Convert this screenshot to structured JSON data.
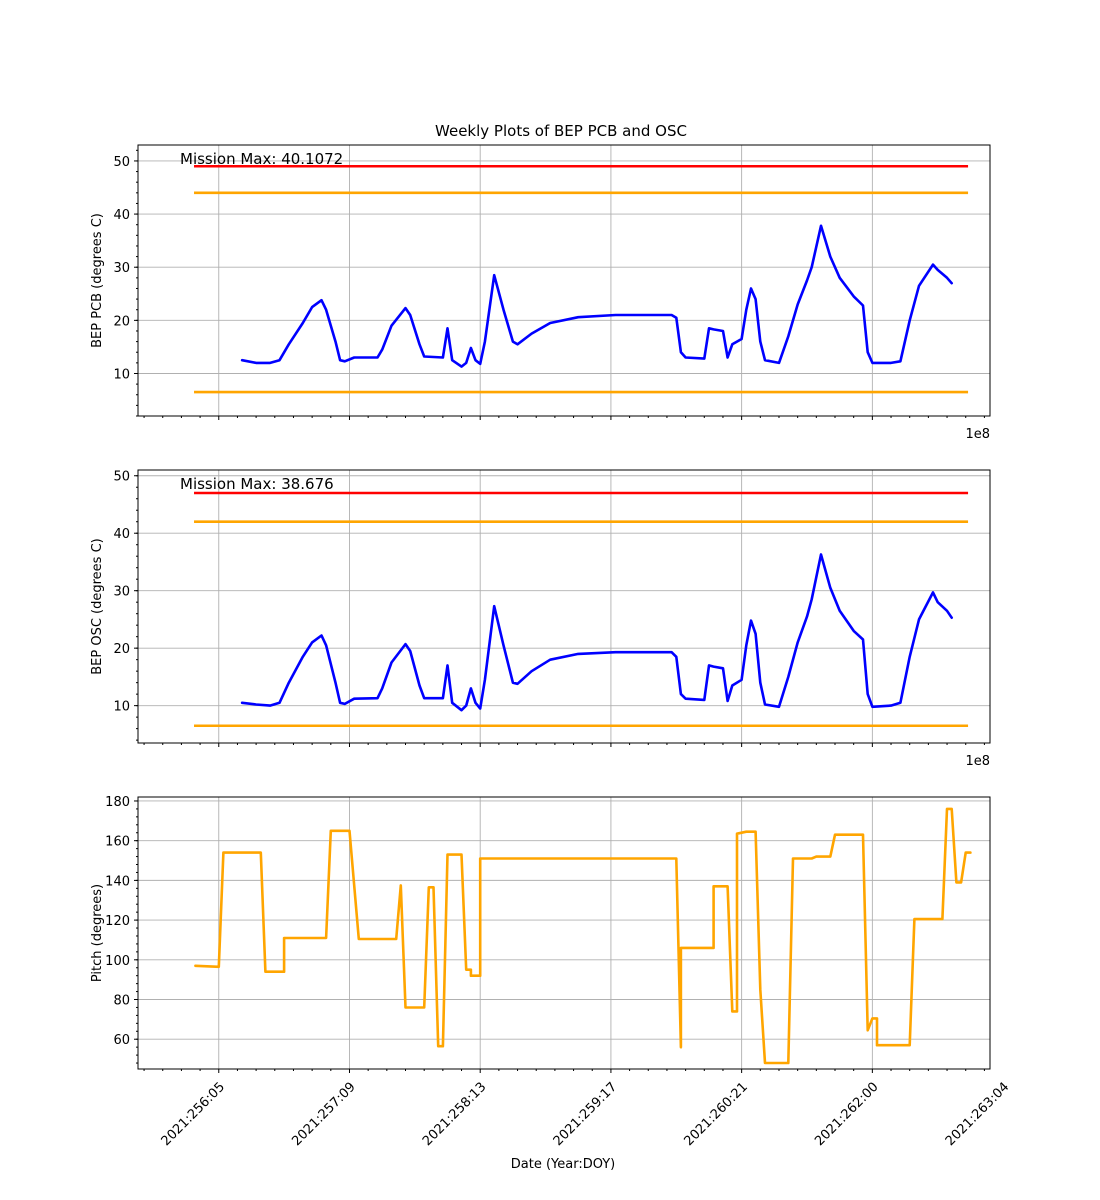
{
  "chart_data": [
    {
      "type": "line",
      "title": "Weekly Plots of BEP PCB and OSC",
      "xlabel": "",
      "ylabel": "BEP PCB (degrees C)",
      "offset_label": "1e8",
      "annotation": "Mission Max: 40.1072",
      "ylim": [
        2,
        53
      ],
      "yticks": [
        10,
        20,
        30,
        40,
        50
      ],
      "grid": true,
      "limit_lines": [
        {
          "y": 49,
          "color": "#ff0000"
        },
        {
          "y": 44,
          "color": "#ffa500"
        },
        {
          "y": 6.5,
          "color": "#ffa500"
        }
      ],
      "series": [
        {
          "color": "#0000ff",
          "points": [
            [
              "2021:256:10",
              12.5
            ],
            [
              "2021:256:13",
              12.0
            ],
            [
              "2021:256:16",
              12.0
            ],
            [
              "2021:256:18",
              12.5
            ],
            [
              "2021:256:20",
              15.5
            ],
            [
              "2021:256:23",
              19.5
            ],
            [
              "2021:257:01",
              22.5
            ],
            [
              "2021:257:03",
              23.8
            ],
            [
              "2021:257:04",
              22.0
            ],
            [
              "2021:257:06",
              16.0
            ],
            [
              "2021:257:07",
              12.5
            ],
            [
              "2021:257:08",
              12.3
            ],
            [
              "2021:257:10",
              13.0
            ],
            [
              "2021:257:15",
              13.0
            ],
            [
              "2021:257:16",
              14.5
            ],
            [
              "2021:257:18",
              19.0
            ],
            [
              "2021:257:21",
              22.3
            ],
            [
              "2021:257:22",
              21.0
            ],
            [
              "2021:258:00",
              15.5
            ],
            [
              "2021:258:01",
              13.2
            ],
            [
              "2021:258:05",
              13.0
            ],
            [
              "2021:258:06",
              18.5
            ],
            [
              "2021:258:07",
              12.5
            ],
            [
              "2021:258:09",
              11.3
            ],
            [
              "2021:258:10",
              12.0
            ],
            [
              "2021:258:11",
              14.8
            ],
            [
              "2021:258:12",
              12.5
            ],
            [
              "2021:258:13",
              11.8
            ],
            [
              "2021:258:14",
              16.0
            ],
            [
              "2021:258:16",
              28.5
            ],
            [
              "2021:258:18",
              22.0
            ],
            [
              "2021:258:20",
              16.0
            ],
            [
              "2021:258:21",
              15.5
            ],
            [
              "2021:259:00",
              17.5
            ],
            [
              "2021:259:04",
              19.5
            ],
            [
              "2021:259:10",
              20.6
            ],
            [
              "2021:259:18",
              21.0
            ],
            [
              "2021:260:00",
              21.0
            ],
            [
              "2021:260:06",
              21.0
            ],
            [
              "2021:260:07",
              20.5
            ],
            [
              "2021:260:08",
              14.0
            ],
            [
              "2021:260:09",
              13.0
            ],
            [
              "2021:260:13",
              12.8
            ],
            [
              "2021:260:14",
              18.5
            ],
            [
              "2021:260:15",
              18.3
            ],
            [
              "2021:260:17",
              18.0
            ],
            [
              "2021:260:18",
              13.0
            ],
            [
              "2021:260:19",
              15.5
            ],
            [
              "2021:260:21",
              16.5
            ],
            [
              "2021:260:22",
              22.0
            ],
            [
              "2021:260:23",
              26.0
            ],
            [
              "2021:261:00",
              24.0
            ],
            [
              "2021:261:01",
              16.0
            ],
            [
              "2021:261:02",
              12.5
            ],
            [
              "2021:261:05",
              12.0
            ],
            [
              "2021:261:07",
              17.0
            ],
            [
              "2021:261:09",
              23.0
            ],
            [
              "2021:261:11",
              27.5
            ],
            [
              "2021:261:12",
              30.0
            ],
            [
              "2021:261:14",
              37.8
            ],
            [
              "2021:261:16",
              32.0
            ],
            [
              "2021:261:18",
              28.0
            ],
            [
              "2021:261:21",
              24.5
            ],
            [
              "2021:261:23",
              22.8
            ],
            [
              "2021:262:00",
              14.0
            ],
            [
              "2021:262:01",
              12.0
            ],
            [
              "2021:262:05",
              12.0
            ],
            [
              "2021:262:07",
              12.3
            ],
            [
              "2021:262:09",
              20.0
            ],
            [
              "2021:262:11",
              26.5
            ],
            [
              "2021:262:14",
              30.5
            ],
            [
              "2021:262:15",
              29.5
            ],
            [
              "2021:262:17",
              28.0
            ],
            [
              "2021:262:18",
              27.0
            ]
          ]
        }
      ]
    },
    {
      "type": "line",
      "title": "",
      "xlabel": "",
      "ylabel": "BEP OSC (degrees C)",
      "offset_label": "1e8",
      "annotation": "Mission Max: 38.676",
      "ylim": [
        3.5,
        51
      ],
      "yticks": [
        10,
        20,
        30,
        40,
        50
      ],
      "grid": true,
      "limit_lines": [
        {
          "y": 47,
          "color": "#ff0000"
        },
        {
          "y": 42,
          "color": "#ffa500"
        },
        {
          "y": 6.5,
          "color": "#ffa500"
        }
      ],
      "series": [
        {
          "color": "#0000ff",
          "points": [
            [
              "2021:256:10",
              10.5
            ],
            [
              "2021:256:13",
              10.2
            ],
            [
              "2021:256:16",
              10.0
            ],
            [
              "2021:256:18",
              10.5
            ],
            [
              "2021:256:20",
              14.0
            ],
            [
              "2021:256:23",
              18.5
            ],
            [
              "2021:257:01",
              21.0
            ],
            [
              "2021:257:03",
              22.2
            ],
            [
              "2021:257:04",
              20.5
            ],
            [
              "2021:257:06",
              14.0
            ],
            [
              "2021:257:07",
              10.5
            ],
            [
              "2021:257:08",
              10.3
            ],
            [
              "2021:257:10",
              11.2
            ],
            [
              "2021:257:15",
              11.3
            ],
            [
              "2021:257:16",
              13.0
            ],
            [
              "2021:257:18",
              17.5
            ],
            [
              "2021:257:21",
              20.7
            ],
            [
              "2021:257:22",
              19.5
            ],
            [
              "2021:258:00",
              13.5
            ],
            [
              "2021:258:01",
              11.3
            ],
            [
              "2021:258:05",
              11.3
            ],
            [
              "2021:258:06",
              17.0
            ],
            [
              "2021:258:07",
              10.5
            ],
            [
              "2021:258:09",
              9.2
            ],
            [
              "2021:258:10",
              10.0
            ],
            [
              "2021:258:11",
              13.0
            ],
            [
              "2021:258:12",
              10.5
            ],
            [
              "2021:258:13",
              9.5
            ],
            [
              "2021:258:14",
              14.5
            ],
            [
              "2021:258:16",
              27.3
            ],
            [
              "2021:258:18",
              20.5
            ],
            [
              "2021:258:20",
              14.0
            ],
            [
              "2021:258:21",
              13.8
            ],
            [
              "2021:259:00",
              16.0
            ],
            [
              "2021:259:04",
              18.0
            ],
            [
              "2021:259:10",
              19.0
            ],
            [
              "2021:259:18",
              19.3
            ],
            [
              "2021:260:00",
              19.3
            ],
            [
              "2021:260:06",
              19.3
            ],
            [
              "2021:260:07",
              18.5
            ],
            [
              "2021:260:08",
              12.0
            ],
            [
              "2021:260:09",
              11.2
            ],
            [
              "2021:260:13",
              11.0
            ],
            [
              "2021:260:14",
              17.0
            ],
            [
              "2021:260:15",
              16.8
            ],
            [
              "2021:260:17",
              16.5
            ],
            [
              "2021:260:18",
              10.8
            ],
            [
              "2021:260:19",
              13.5
            ],
            [
              "2021:260:21",
              14.5
            ],
            [
              "2021:260:22",
              20.5
            ],
            [
              "2021:260:23",
              24.8
            ],
            [
              "2021:261:00",
              22.5
            ],
            [
              "2021:261:01",
              14.0
            ],
            [
              "2021:261:02",
              10.2
            ],
            [
              "2021:261:05",
              9.8
            ],
            [
              "2021:261:07",
              15.0
            ],
            [
              "2021:261:09",
              21.0
            ],
            [
              "2021:261:11",
              25.5
            ],
            [
              "2021:261:12",
              28.5
            ],
            [
              "2021:261:14",
              36.3
            ],
            [
              "2021:261:16",
              30.5
            ],
            [
              "2021:261:18",
              26.5
            ],
            [
              "2021:261:21",
              23.0
            ],
            [
              "2021:261:23",
              21.5
            ],
            [
              "2021:262:00",
              12.0
            ],
            [
              "2021:262:01",
              9.8
            ],
            [
              "2021:262:05",
              10.0
            ],
            [
              "2021:262:07",
              10.5
            ],
            [
              "2021:262:09",
              18.5
            ],
            [
              "2021:262:11",
              25.0
            ],
            [
              "2021:262:14",
              29.7
            ],
            [
              "2021:262:15",
              28.0
            ],
            [
              "2021:262:17",
              26.5
            ],
            [
              "2021:262:18",
              25.3
            ]
          ]
        }
      ]
    },
    {
      "type": "line",
      "title": "",
      "xlabel": "Date (Year:DOY)",
      "ylabel": "Pitch (degrees)",
      "ylim": [
        45,
        182
      ],
      "yticks": [
        60,
        80,
        100,
        120,
        140,
        160,
        180
      ],
      "xticks": [
        "2021:256:05",
        "2021:257:09",
        "2021:258:13",
        "2021:259:17",
        "2021:260:21",
        "2021:262:00",
        "2021:263:04"
      ],
      "grid": true,
      "series": [
        {
          "color": "#ffa500",
          "points": [
            [
              "2021:256:00",
              97
            ],
            [
              "2021:256:05",
              96.5
            ],
            [
              "2021:256:06",
              154
            ],
            [
              "2021:256:14",
              154
            ],
            [
              "2021:256:15",
              94
            ],
            [
              "2021:256:19",
              94
            ],
            [
              "2021:256:19",
              111
            ],
            [
              "2021:257:04",
              111
            ],
            [
              "2021:257:05",
              165
            ],
            [
              "2021:257:09",
              165
            ],
            [
              "2021:257:11",
              110.5
            ],
            [
              "2021:257:19",
              110.5
            ],
            [
              "2021:257:20",
              137.5
            ],
            [
              "2021:257:21",
              76
            ],
            [
              "2021:258:01",
              76
            ],
            [
              "2021:258:02",
              136.5
            ],
            [
              "2021:258:03",
              136.5
            ],
            [
              "2021:258:04",
              56.5
            ],
            [
              "2021:258:05",
              56.5
            ],
            [
              "2021:258:06",
              153
            ],
            [
              "2021:258:09",
              153
            ],
            [
              "2021:258:10",
              95
            ],
            [
              "2021:258:11",
              95
            ],
            [
              "2021:258:11",
              92
            ],
            [
              "2021:258:13",
              92
            ],
            [
              "2021:258:13",
              151
            ],
            [
              "2021:260:07",
              151
            ],
            [
              "2021:260:08",
              56
            ],
            [
              "2021:260:08",
              106
            ],
            [
              "2021:260:15",
              106
            ],
            [
              "2021:260:15",
              137
            ],
            [
              "2021:260:18",
              137
            ],
            [
              "2021:260:19",
              74
            ],
            [
              "2021:260:20",
              74
            ],
            [
              "2021:260:20",
              163.5
            ],
            [
              "2021:260:22",
              164.5
            ],
            [
              "2021:261:00",
              164.5
            ],
            [
              "2021:261:01",
              85
            ],
            [
              "2021:261:02",
              48
            ],
            [
              "2021:261:07",
              48
            ],
            [
              "2021:261:08",
              151
            ],
            [
              "2021:261:12",
              151
            ],
            [
              "2021:261:13",
              152
            ],
            [
              "2021:261:16",
              152
            ],
            [
              "2021:261:17",
              163
            ],
            [
              "2021:261:23",
              163
            ],
            [
              "2021:262:00",
              64.5
            ],
            [
              "2021:262:01",
              70.5
            ],
            [
              "2021:262:02",
              70.5
            ],
            [
              "2021:262:02",
              57
            ],
            [
              "2021:262:09",
              57
            ],
            [
              "2021:262:10",
              120.5
            ],
            [
              "2021:262:16",
              120.5
            ],
            [
              "2021:262:17",
              176
            ],
            [
              "2021:262:18",
              176
            ],
            [
              "2021:262:19",
              139
            ],
            [
              "2021:262:20",
              139
            ],
            [
              "2021:262:21",
              154
            ],
            [
              "2021:262:22",
              154
            ]
          ]
        }
      ]
    }
  ]
}
